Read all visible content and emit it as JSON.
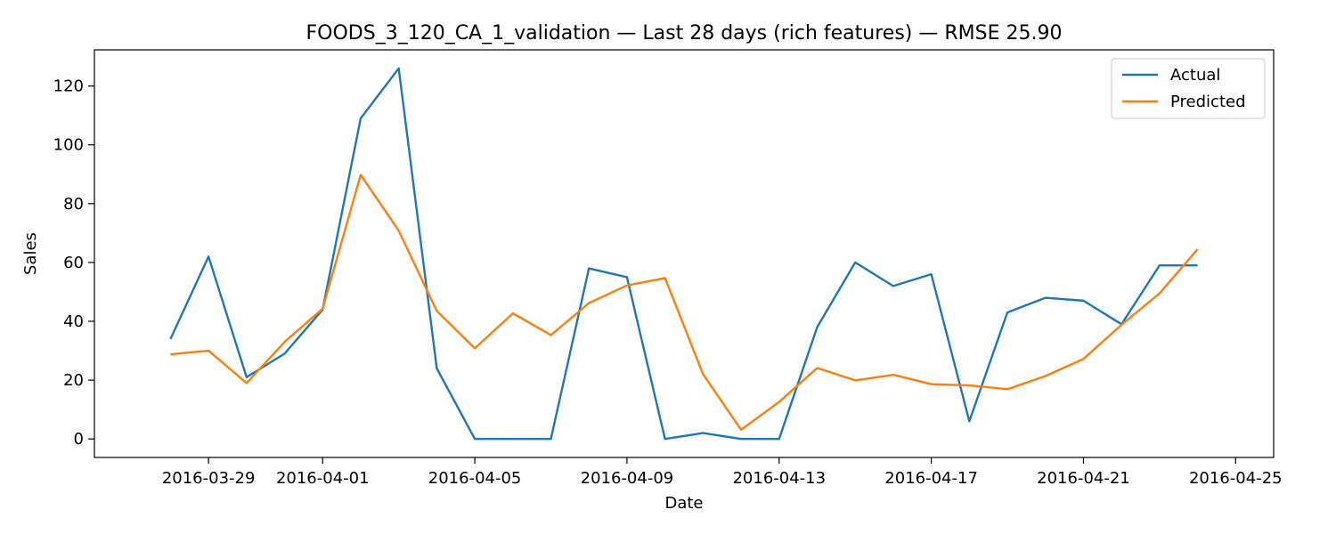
{
  "chart_data": {
    "type": "line",
    "title": "FOODS_3_120_CA_1_validation — Last 28 days (rich features) — RMSE 25.90",
    "xlabel": "Date",
    "ylabel": "Sales",
    "xlim": [
      "2016-03-26",
      "2016-04-26"
    ],
    "ylim": [
      -6.3,
      132.3
    ],
    "x_ticks": [
      "2016-03-29",
      "2016-04-01",
      "2016-04-05",
      "2016-04-09",
      "2016-04-13",
      "2016-04-17",
      "2016-04-21",
      "2016-04-25"
    ],
    "y_ticks": [
      0,
      20,
      40,
      60,
      80,
      100,
      120
    ],
    "grid": false,
    "legend_position": "top-right",
    "x": [
      "2016-03-28",
      "2016-03-29",
      "2016-03-30",
      "2016-03-31",
      "2016-04-01",
      "2016-04-02",
      "2016-04-03",
      "2016-04-04",
      "2016-04-05",
      "2016-04-06",
      "2016-04-07",
      "2016-04-08",
      "2016-04-09",
      "2016-04-10",
      "2016-04-11",
      "2016-04-12",
      "2016-04-13",
      "2016-04-14",
      "2016-04-15",
      "2016-04-16",
      "2016-04-17",
      "2016-04-18",
      "2016-04-19",
      "2016-04-20",
      "2016-04-21",
      "2016-04-22",
      "2016-04-23",
      "2016-04-24"
    ],
    "series": [
      {
        "name": "Actual",
        "color": "#1f77b4",
        "values": [
          34,
          62,
          21,
          29,
          44,
          109,
          126,
          24,
          0,
          0,
          0,
          58,
          55,
          0,
          2,
          0,
          0,
          38,
          60,
          52,
          56,
          6,
          43,
          48,
          47,
          39,
          59,
          59
        ]
      },
      {
        "name": "Predicted",
        "color": "#ff7f0e",
        "values": [
          28.8,
          30,
          19,
          33,
          44.3,
          89.8,
          70.8,
          43.5,
          30.8,
          42.7,
          35.3,
          46.2,
          52.2,
          54.7,
          22,
          3.1,
          12.6,
          24.1,
          19.9,
          21.8,
          18.6,
          18.2,
          16.9,
          21.4,
          27.2,
          38.8,
          49.5,
          64.5
        ]
      }
    ]
  }
}
